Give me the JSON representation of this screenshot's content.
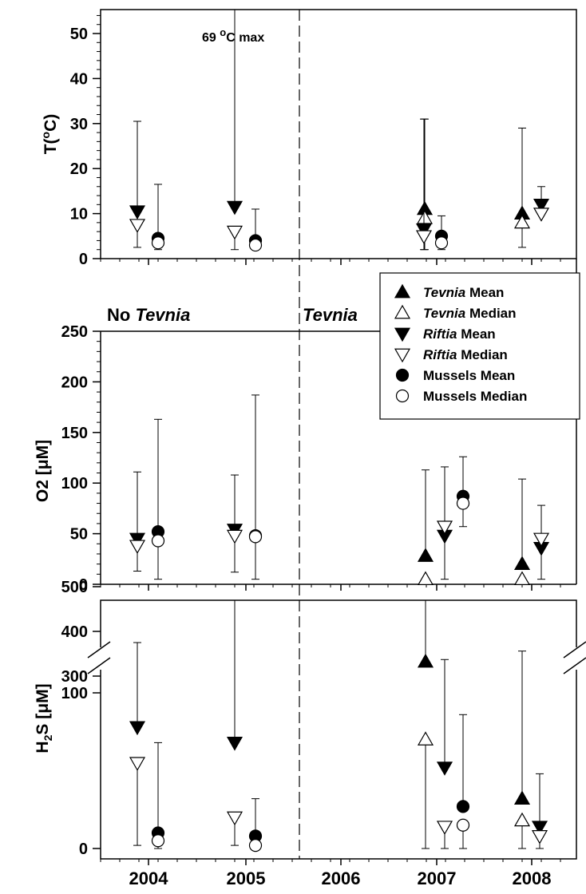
{
  "figure": {
    "years": [
      "2004",
      "2005",
      "2006",
      "2007",
      "2008"
    ],
    "region_labels": {
      "before": [
        "No ",
        "Tevnia"
      ],
      "after": [
        "Tevnia"
      ]
    },
    "annotation": [
      "69 ",
      "o",
      "C max"
    ]
  },
  "legend": [
    {
      "label_italic": "Tevnia",
      "label_rest": " Mean",
      "symbol": "triangle-up",
      "filled": true
    },
    {
      "label_italic": "Tevnia",
      "label_rest": " Median",
      "symbol": "triangle-up",
      "filled": false
    },
    {
      "label_italic": "Riftia",
      "label_rest": " Mean",
      "symbol": "triangle-down",
      "filled": true
    },
    {
      "label_italic": "Riftia",
      "label_rest": " Median",
      "symbol": "triangle-down",
      "filled": false
    },
    {
      "label_italic": "",
      "label_rest": "Mussels Mean",
      "symbol": "circle",
      "filled": true
    },
    {
      "label_italic": "",
      "label_rest": "Mussels Median",
      "symbol": "circle",
      "filled": false
    }
  ],
  "chart_data": [
    {
      "type": "scatter",
      "ylabel": "T(oC)",
      "ylim": [
        0,
        55
      ],
      "yticks": [
        0,
        10,
        20,
        30,
        40,
        50
      ],
      "x_categories": [
        "2004",
        "2005",
        "2006",
        "2007",
        "2008"
      ],
      "series": [
        {
          "name": "Tevnia Mean",
          "points": [
            {
              "x": "2007",
              "y": 11,
              "max": 31,
              "min": null
            },
            {
              "x": "2008",
              "y": 10,
              "max": 29,
              "min": null
            }
          ]
        },
        {
          "name": "Tevnia Median",
          "points": [
            {
              "x": "2007",
              "y": 9,
              "max": null,
              "min": 2
            },
            {
              "x": "2008",
              "y": 8,
              "max": null,
              "min": 2.5
            }
          ]
        },
        {
          "name": "Riftia Mean",
          "points": [
            {
              "x": "2004",
              "y": 10.5,
              "max": 30.5,
              "min": null
            },
            {
              "x": "2005",
              "y": 11.5,
              "max": 69,
              "min": null
            },
            {
              "x": "2007",
              "y": 6.5,
              "max": 31,
              "min": null
            },
            {
              "x": "2008",
              "y": 12,
              "max": 16,
              "min": null
            }
          ]
        },
        {
          "name": "Riftia Median",
          "points": [
            {
              "x": "2004",
              "y": 7.5,
              "max": null,
              "min": 2.5
            },
            {
              "x": "2005",
              "y": 6,
              "max": null,
              "min": 2
            },
            {
              "x": "2007",
              "y": 5,
              "max": null,
              "min": 2
            },
            {
              "x": "2008",
              "y": 10,
              "max": null,
              "min": null
            }
          ]
        },
        {
          "name": "Mussels Mean",
          "points": [
            {
              "x": "2004",
              "y": 4.5,
              "max": 16.5,
              "min": null
            },
            {
              "x": "2005",
              "y": 4,
              "max": 11,
              "min": null
            },
            {
              "x": "2007",
              "y": 5,
              "max": 9.5,
              "min": null
            }
          ]
        },
        {
          "name": "Mussels Median",
          "points": [
            {
              "x": "2004",
              "y": 3.5,
              "max": null,
              "min": 2
            },
            {
              "x": "2005",
              "y": 3,
              "max": null,
              "min": 2
            },
            {
              "x": "2007",
              "y": 3.5,
              "max": null,
              "min": 2
            }
          ]
        }
      ]
    },
    {
      "type": "scatter",
      "ylabel": "O2 [μM]",
      "ylim": [
        0,
        250
      ],
      "yticks": [
        0,
        50,
        100,
        150,
        200,
        250
      ],
      "x_categories": [
        "2004",
        "2005",
        "2006",
        "2007",
        "2008"
      ],
      "series": [
        {
          "name": "Tevnia Mean",
          "points": [
            {
              "x": "2007",
              "y": 28,
              "max": 113,
              "min": null
            },
            {
              "x": "2008",
              "y": 20,
              "max": 104,
              "min": null
            }
          ]
        },
        {
          "name": "Tevnia Median",
          "points": [
            {
              "x": "2007",
              "y": 5,
              "max": null,
              "min": null
            },
            {
              "x": "2008",
              "y": 5,
              "max": null,
              "min": null
            }
          ]
        },
        {
          "name": "Riftia Mean",
          "points": [
            {
              "x": "2004",
              "y": 45,
              "max": 111,
              "min": null
            },
            {
              "x": "2005",
              "y": 54,
              "max": 108,
              "min": null
            },
            {
              "x": "2007",
              "y": 48,
              "max": 116,
              "min": null
            },
            {
              "x": "2008",
              "y": 36,
              "max": 78,
              "min": null
            }
          ]
        },
        {
          "name": "Riftia Median",
          "points": [
            {
              "x": "2004",
              "y": 38,
              "max": null,
              "min": 13
            },
            {
              "x": "2005",
              "y": 48,
              "max": null,
              "min": 12
            },
            {
              "x": "2007",
              "y": 57,
              "max": null,
              "min": 5
            },
            {
              "x": "2008",
              "y": 45,
              "max": null,
              "min": 5
            }
          ]
        },
        {
          "name": "Mussels Mean",
          "points": [
            {
              "x": "2004",
              "y": 52,
              "max": 163,
              "min": null
            },
            {
              "x": "2005",
              "y": 48,
              "max": 187,
              "min": null
            },
            {
              "x": "2007",
              "y": 87,
              "max": 126,
              "min": null
            }
          ]
        },
        {
          "name": "Mussels Median",
          "points": [
            {
              "x": "2004",
              "y": 43,
              "max": null,
              "min": 5
            },
            {
              "x": "2005",
              "y": 47,
              "max": null,
              "min": 5
            },
            {
              "x": "2007",
              "y": 80,
              "max": null,
              "min": 57
            }
          ]
        }
      ]
    },
    {
      "type": "scatter",
      "ylabel": "H2S [μM]",
      "y_broken_axis": true,
      "yticks": [
        0,
        100,
        300,
        400,
        500
      ],
      "x_categories": [
        "2004",
        "2005",
        "2006",
        "2007",
        "2008"
      ],
      "series": [
        {
          "name": "Tevnia Mean",
          "points": [
            {
              "x": "2007",
              "y": 120,
              "max": 548,
              "min": null
            },
            {
              "x": "2008",
              "y": 32,
              "max": 356,
              "min": null
            }
          ]
        },
        {
          "name": "Tevnia Median",
          "points": [
            {
              "x": "2007",
              "y": 70,
              "max": null,
              "min": 0
            },
            {
              "x": "2008",
              "y": 18,
              "max": null,
              "min": 0
            }
          ]
        },
        {
          "name": "Riftia Mean",
          "points": [
            {
              "x": "2004",
              "y": 78,
              "max": 375,
              "min": null
            },
            {
              "x": "2005",
              "y": 68,
              "max": 497,
              "min": null
            },
            {
              "x": "2007",
              "y": 52,
              "max": 337,
              "min": null
            },
            {
              "x": "2008",
              "y": 14,
              "max": 48,
              "min": null
            }
          ]
        },
        {
          "name": "Riftia Median",
          "points": [
            {
              "x": "2004",
              "y": 55,
              "max": null,
              "min": 2
            },
            {
              "x": "2005",
              "y": 20,
              "max": null,
              "min": 2
            },
            {
              "x": "2007",
              "y": 14,
              "max": null,
              "min": 0
            },
            {
              "x": "2008",
              "y": 8,
              "max": null,
              "min": 0
            }
          ]
        },
        {
          "name": "Mussels Mean",
          "points": [
            {
              "x": "2004",
              "y": 10,
              "max": 68,
              "min": null
            },
            {
              "x": "2005",
              "y": 8,
              "max": 32,
              "min": null
            },
            {
              "x": "2007",
              "y": 27,
              "max": 86,
              "min": null
            }
          ]
        },
        {
          "name": "Mussels Median",
          "points": [
            {
              "x": "2004",
              "y": 5,
              "max": null,
              "min": 0
            },
            {
              "x": "2005",
              "y": 2,
              "max": null,
              "min": 0
            },
            {
              "x": "2007",
              "y": 15,
              "max": null,
              "min": 0
            }
          ]
        }
      ]
    }
  ]
}
